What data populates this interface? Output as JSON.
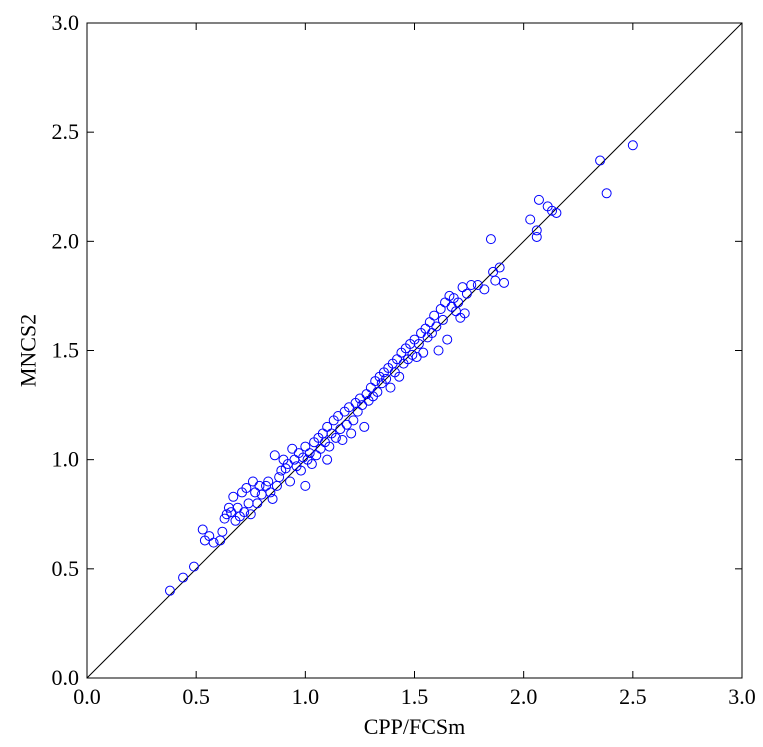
{
  "chart_data": {
    "type": "scatter",
    "title": "",
    "xlabel": "CPP/FCSm",
    "ylabel": "MNCS2",
    "xlim": [
      0.0,
      3.0
    ],
    "ylim": [
      0.0,
      3.0
    ],
    "xticks": [
      "0.0",
      "0.5",
      "1.0",
      "1.5",
      "2.0",
      "2.5",
      "3.0"
    ],
    "yticks": [
      "0.0",
      "0.5",
      "1.0",
      "1.5",
      "2.0",
      "2.5",
      "3.0"
    ],
    "grid": false,
    "marker": "open-circle",
    "marker_color": "#0000ff",
    "reference_line": {
      "from": [
        0,
        0
      ],
      "to": [
        3,
        3
      ],
      "color": "#000000"
    },
    "series": [
      {
        "points": [
          [
            0.38,
            0.4
          ],
          [
            0.44,
            0.46
          ],
          [
            0.49,
            0.51
          ],
          [
            0.53,
            0.68
          ],
          [
            0.54,
            0.63
          ],
          [
            0.56,
            0.65
          ],
          [
            0.58,
            0.62
          ],
          [
            0.61,
            0.63
          ],
          [
            0.62,
            0.67
          ],
          [
            0.63,
            0.73
          ],
          [
            0.64,
            0.75
          ],
          [
            0.65,
            0.78
          ],
          [
            0.66,
            0.76
          ],
          [
            0.67,
            0.83
          ],
          [
            0.68,
            0.72
          ],
          [
            0.69,
            0.78
          ],
          [
            0.7,
            0.74
          ],
          [
            0.71,
            0.85
          ],
          [
            0.72,
            0.76
          ],
          [
            0.73,
            0.87
          ],
          [
            0.74,
            0.8
          ],
          [
            0.75,
            0.75
          ],
          [
            0.76,
            0.9
          ],
          [
            0.77,
            0.85
          ],
          [
            0.78,
            0.8
          ],
          [
            0.79,
            0.88
          ],
          [
            0.8,
            0.84
          ],
          [
            0.82,
            0.88
          ],
          [
            0.83,
            0.9
          ],
          [
            0.84,
            0.85
          ],
          [
            0.85,
            0.82
          ],
          [
            0.86,
            1.02
          ],
          [
            0.87,
            0.88
          ],
          [
            0.88,
            0.92
          ],
          [
            0.89,
            0.95
          ],
          [
            0.9,
            1.0
          ],
          [
            0.91,
            0.96
          ],
          [
            0.92,
            0.98
          ],
          [
            0.93,
            0.9
          ],
          [
            0.94,
            1.05
          ],
          [
            0.95,
            1.0
          ],
          [
            0.96,
            0.97
          ],
          [
            0.97,
            1.03
          ],
          [
            0.98,
            0.95
          ],
          [
            0.99,
            1.01
          ],
          [
            1.0,
            0.88
          ],
          [
            1.0,
            1.06
          ],
          [
            1.01,
            1.0
          ],
          [
            1.02,
            1.03
          ],
          [
            1.03,
            0.98
          ],
          [
            1.04,
            1.08
          ],
          [
            1.05,
            1.02
          ],
          [
            1.06,
            1.1
          ],
          [
            1.07,
            1.05
          ],
          [
            1.08,
            1.12
          ],
          [
            1.09,
            1.08
          ],
          [
            1.1,
            1.0
          ],
          [
            1.1,
            1.15
          ],
          [
            1.11,
            1.06
          ],
          [
            1.12,
            1.12
          ],
          [
            1.13,
            1.18
          ],
          [
            1.14,
            1.1
          ],
          [
            1.15,
            1.2
          ],
          [
            1.16,
            1.14
          ],
          [
            1.17,
            1.09
          ],
          [
            1.18,
            1.22
          ],
          [
            1.19,
            1.16
          ],
          [
            1.2,
            1.24
          ],
          [
            1.21,
            1.12
          ],
          [
            1.22,
            1.18
          ],
          [
            1.23,
            1.26
          ],
          [
            1.24,
            1.22
          ],
          [
            1.25,
            1.28
          ],
          [
            1.26,
            1.25
          ],
          [
            1.27,
            1.15
          ],
          [
            1.28,
            1.3
          ],
          [
            1.29,
            1.27
          ],
          [
            1.3,
            1.33
          ],
          [
            1.31,
            1.29
          ],
          [
            1.32,
            1.36
          ],
          [
            1.33,
            1.31
          ],
          [
            1.34,
            1.38
          ],
          [
            1.35,
            1.35
          ],
          [
            1.36,
            1.4
          ],
          [
            1.37,
            1.37
          ],
          [
            1.38,
            1.42
          ],
          [
            1.39,
            1.33
          ],
          [
            1.4,
            1.44
          ],
          [
            1.41,
            1.4
          ],
          [
            1.42,
            1.46
          ],
          [
            1.43,
            1.38
          ],
          [
            1.44,
            1.49
          ],
          [
            1.45,
            1.44
          ],
          [
            1.46,
            1.51
          ],
          [
            1.47,
            1.46
          ],
          [
            1.48,
            1.53
          ],
          [
            1.49,
            1.48
          ],
          [
            1.5,
            1.55
          ],
          [
            1.51,
            1.47
          ],
          [
            1.52,
            1.53
          ],
          [
            1.53,
            1.58
          ],
          [
            1.54,
            1.49
          ],
          [
            1.55,
            1.6
          ],
          [
            1.56,
            1.56
          ],
          [
            1.57,
            1.63
          ],
          [
            1.58,
            1.58
          ],
          [
            1.59,
            1.66
          ],
          [
            1.6,
            1.61
          ],
          [
            1.61,
            1.5
          ],
          [
            1.62,
            1.69
          ],
          [
            1.63,
            1.64
          ],
          [
            1.64,
            1.72
          ],
          [
            1.65,
            1.55
          ],
          [
            1.66,
            1.75
          ],
          [
            1.67,
            1.7
          ],
          [
            1.68,
            1.74
          ],
          [
            1.69,
            1.68
          ],
          [
            1.7,
            1.72
          ],
          [
            1.71,
            1.65
          ],
          [
            1.72,
            1.79
          ],
          [
            1.73,
            1.67
          ],
          [
            1.74,
            1.76
          ],
          [
            1.76,
            1.8
          ],
          [
            1.79,
            1.8
          ],
          [
            1.82,
            1.78
          ],
          [
            1.85,
            2.01
          ],
          [
            1.86,
            1.86
          ],
          [
            1.87,
            1.82
          ],
          [
            1.89,
            1.88
          ],
          [
            1.91,
            1.81
          ],
          [
            2.03,
            2.1
          ],
          [
            2.06,
            2.02
          ],
          [
            2.06,
            2.05
          ],
          [
            2.07,
            2.19
          ],
          [
            2.11,
            2.16
          ],
          [
            2.13,
            2.14
          ],
          [
            2.15,
            2.13
          ],
          [
            2.35,
            2.37
          ],
          [
            2.38,
            2.22
          ],
          [
            2.5,
            2.44
          ]
        ]
      }
    ]
  }
}
